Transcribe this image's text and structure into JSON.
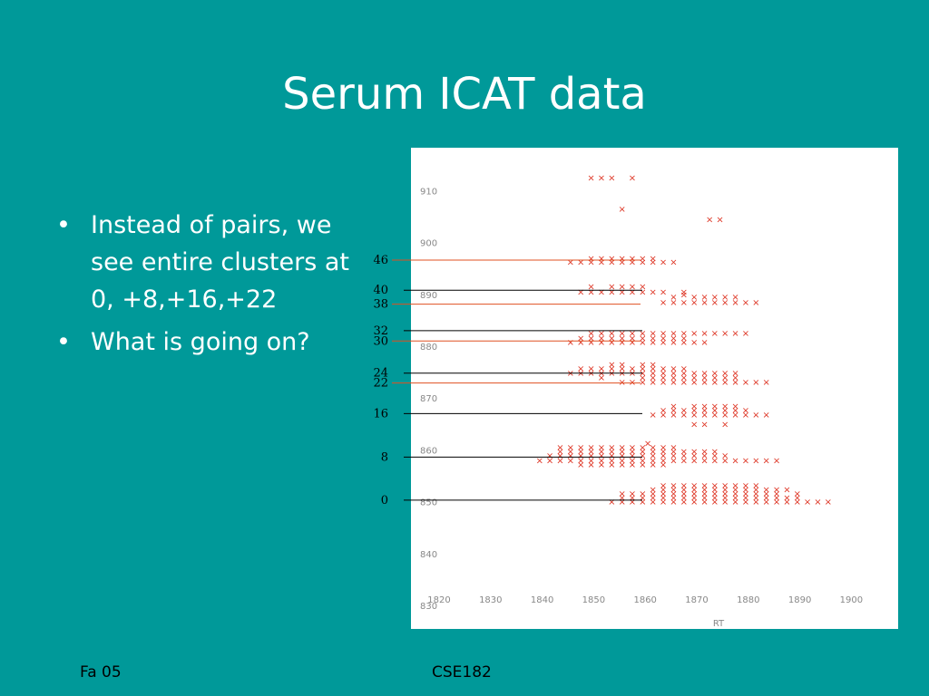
{
  "slide": {
    "title": "Serum ICAT data",
    "bullets": [
      "Instead of pairs, we see entire clusters at 0, +8,+16,+22",
      "What is going on?"
    ],
    "bullet_symbol": "•",
    "footer_left": "Fa 05",
    "footer_center": "CSE182"
  },
  "colors": {
    "background": "#009999",
    "text": "#ffffff",
    "plot_background": "#ffffff",
    "marker": "#dd3322",
    "marker_dense": "#f0a030",
    "annotation_line_black": "#000000",
    "annotation_line_red": "#e05020"
  },
  "chart_data": {
    "type": "scatter",
    "marker": "×",
    "xlabel": "RT",
    "ylabel": "",
    "xlim": [
      1820,
      1910
    ],
    "ylim": [
      830,
      915
    ],
    "x_ticks": [
      1820,
      1830,
      1840,
      1850,
      1860,
      1870,
      1880,
      1890,
      1900
    ],
    "y_ticks": [
      830,
      840,
      850,
      860,
      870,
      880,
      890,
      900,
      910
    ],
    "annotations": [
      {
        "label": "46",
        "y": 896.6,
        "color": "red"
      },
      {
        "label": "40",
        "y": 890.8,
        "color": "black"
      },
      {
        "label": "38",
        "y": 888.1,
        "color": "red"
      },
      {
        "label": "32",
        "y": 883.0,
        "color": "black"
      },
      {
        "label": "30",
        "y": 881.0,
        "color": "red"
      },
      {
        "label": "24",
        "y": 874.8,
        "color": "black"
      },
      {
        "label": "22",
        "y": 872.9,
        "color": "red"
      },
      {
        "label": "16",
        "y": 867.0,
        "color": "black"
      },
      {
        "label": "8",
        "y": 858.6,
        "color": "black"
      },
      {
        "label": "0",
        "y": 850.3,
        "color": "black"
      }
    ],
    "rows": [
      {
        "y": 912.5,
        "x": [
          1849.5,
          1851.5,
          1853.5,
          1857.5
        ]
      },
      {
        "y": 906.5,
        "x": [
          1855.5
        ]
      },
      {
        "y": 904.5,
        "x": [
          1872.5,
          1874.5
        ]
      },
      {
        "y": 897.0,
        "x": [
          1849.5,
          1851.5,
          1853.5,
          1855.5,
          1857.5,
          1859.5,
          1861.5
        ]
      },
      {
        "y": 896.3,
        "x": [
          1845.5,
          1847.5,
          1849.5,
          1851.5,
          1853.5,
          1855.5,
          1857.5,
          1859.5,
          1861.5,
          1863.5,
          1865.5
        ]
      },
      {
        "y": 891.5,
        "x": [
          1849.5,
          1853.5,
          1855.5,
          1857.5,
          1859.5
        ]
      },
      {
        "y": 890.5,
        "x": [
          1847.5,
          1849.5,
          1851.5,
          1853.5,
          1855.5,
          1857.5,
          1859.5,
          1861.5,
          1863.5,
          1867.5
        ]
      },
      {
        "y": 890.0,
        "x": [
          1867.5
        ]
      },
      {
        "y": 889.5,
        "x": [
          1865.5,
          1869.5,
          1871.5,
          1873.5,
          1875.5,
          1877.5
        ]
      },
      {
        "y": 888.5,
        "x": [
          1863.5,
          1865.5,
          1867.5,
          1869.5,
          1871.5,
          1873.5,
          1875.5,
          1877.5,
          1879.5,
          1881.5
        ]
      },
      {
        "y": 882.5,
        "x": [
          1849.5,
          1851.5,
          1853.5,
          1855.5,
          1857.5,
          1859.5,
          1861.5,
          1863.5,
          1865.5,
          1867.5,
          1869.5,
          1871.5,
          1873.5,
          1875.5,
          1877.5,
          1879.5
        ]
      },
      {
        "y": 881.6,
        "x": [
          1847.5,
          1849.5,
          1851.5,
          1853.5,
          1855.5,
          1857.5,
          1859.5,
          1861.5,
          1863.5,
          1865.5,
          1867.5
        ]
      },
      {
        "y": 880.8,
        "x": [
          1845.5,
          1847.5,
          1849.5,
          1851.5,
          1853.5,
          1855.5,
          1857.5,
          1859.5,
          1861.5,
          1863.5,
          1865.5,
          1867.5,
          1869.5,
          1871.5
        ]
      },
      {
        "y": 876.5,
        "x": [
          1853.5,
          1855.5,
          1859.5,
          1861.5
        ]
      },
      {
        "y": 875.7,
        "x": [
          1847.5,
          1849.5,
          1851.5,
          1853.5,
          1855.5,
          1857.5,
          1859.5,
          1861.5,
          1863.5,
          1865.5,
          1867.5
        ]
      },
      {
        "y": 874.8,
        "x": [
          1845.5,
          1847.5,
          1849.5,
          1851.5,
          1853.5,
          1855.5,
          1857.5,
          1859.5,
          1861.5,
          1863.5,
          1865.5,
          1867.5,
          1869.5,
          1871.5,
          1873.5,
          1875.5,
          1877.5
        ]
      },
      {
        "y": 874.0,
        "x": [
          1851.5,
          1859.5,
          1861.5,
          1863.5,
          1865.5,
          1867.5,
          1869.5,
          1871.5,
          1873.5,
          1875.5,
          1877.5
        ]
      },
      {
        "y": 873.1,
        "x": [
          1855.5,
          1857.5,
          1859.5,
          1861.5,
          1863.5,
          1865.5,
          1867.5,
          1869.5,
          1871.5,
          1873.5,
          1875.5,
          1877.5,
          1879.5,
          1881.5,
          1883.5
        ]
      },
      {
        "y": 868.5,
        "x": [
          1865.5,
          1869.5,
          1871.5,
          1873.5,
          1875.5,
          1877.5
        ]
      },
      {
        "y": 867.7,
        "x": [
          1863.5,
          1865.5,
          1867.5,
          1869.5,
          1871.5,
          1873.5,
          1875.5,
          1877.5,
          1879.5
        ]
      },
      {
        "y": 866.8,
        "x": [
          1861.5,
          1863.5,
          1865.5,
          1867.5,
          1869.5,
          1871.5,
          1873.5,
          1875.5,
          1877.5,
          1879.5,
          1881.5,
          1883.5
        ]
      },
      {
        "y": 865.0,
        "x": [
          1869.5,
          1871.5,
          1875.5
        ]
      },
      {
        "y": 861.3,
        "x": [
          1860.5
        ]
      },
      {
        "y": 860.5,
        "x": [
          1843.5,
          1845.5,
          1847.5,
          1849.5,
          1851.5,
          1853.5,
          1855.5,
          1857.5,
          1859.5,
          1861.5,
          1863.5,
          1865.5
        ]
      },
      {
        "y": 859.7,
        "x": [
          1843.5,
          1845.5,
          1847.5,
          1849.5,
          1851.5,
          1853.5,
          1855.5,
          1857.5,
          1859.5,
          1861.5,
          1863.5,
          1865.5,
          1867.5,
          1869.5,
          1871.5,
          1873.5
        ]
      },
      {
        "y": 858.9,
        "x": [
          1841.5,
          1843.5,
          1845.5,
          1847.5,
          1849.5,
          1851.5,
          1853.5,
          1855.5,
          1857.5,
          1859.5,
          1861.5,
          1863.5,
          1865.5,
          1867.5,
          1869.5,
          1871.5,
          1873.5,
          1875.5
        ]
      },
      {
        "y": 858.0,
        "x": [
          1839.5,
          1841.5,
          1843.5,
          1845.5,
          1847.5,
          1849.5,
          1851.5,
          1853.5,
          1855.5,
          1857.5,
          1859.5,
          1861.5,
          1863.5,
          1865.5,
          1867.5,
          1869.5,
          1871.5,
          1873.5,
          1875.5,
          1877.5,
          1879.5,
          1881.5,
          1883.5,
          1885.5
        ]
      },
      {
        "y": 857.2,
        "x": [
          1847.5,
          1849.5,
          1851.5,
          1853.5,
          1855.5,
          1857.5,
          1859.5,
          1861.5,
          1863.5
        ]
      },
      {
        "y": 853.2,
        "x": [
          1863.5,
          1865.5,
          1867.5,
          1869.5,
          1871.5,
          1873.5,
          1875.5,
          1877.5,
          1879.5,
          1881.5
        ]
      },
      {
        "y": 852.4,
        "x": [
          1861.5,
          1863.5,
          1865.5,
          1867.5,
          1869.5,
          1871.5,
          1873.5,
          1875.5,
          1877.5,
          1879.5,
          1881.5,
          1883.5,
          1885.5,
          1887.5
        ]
      },
      {
        "y": 851.6,
        "x": [
          1855.5,
          1857.5,
          1859.5,
          1861.5,
          1863.5,
          1865.5,
          1867.5,
          1869.5,
          1871.5,
          1873.5,
          1875.5,
          1877.5,
          1879.5,
          1881.5,
          1883.5,
          1885.5,
          1889.5
        ]
      },
      {
        "y": 850.8,
        "x": [
          1855.5,
          1857.5,
          1859.5,
          1861.5,
          1863.5,
          1865.5,
          1867.5,
          1869.5,
          1871.5,
          1873.5,
          1875.5,
          1877.5,
          1879.5,
          1881.5,
          1883.5,
          1885.5,
          1887.5,
          1889.5
        ]
      },
      {
        "y": 850.0,
        "x": [
          1853.5,
          1855.5,
          1857.5,
          1859.5,
          1861.5,
          1863.5,
          1865.5,
          1867.5,
          1869.5,
          1871.5,
          1873.5,
          1875.5,
          1877.5,
          1879.5,
          1881.5,
          1883.5,
          1885.5,
          1887.5,
          1889.5,
          1891.5,
          1893.5,
          1895.5
        ]
      }
    ]
  }
}
